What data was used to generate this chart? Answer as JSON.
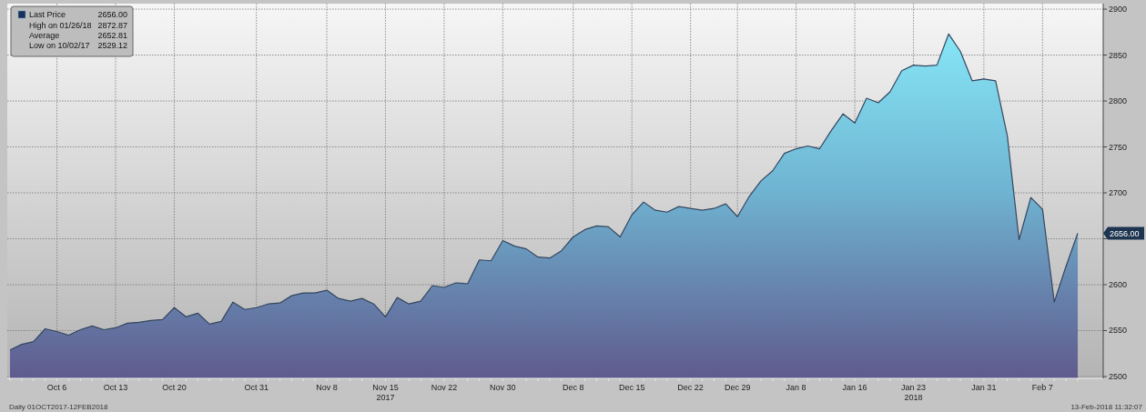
{
  "chart_data": {
    "type": "area",
    "subtitle": "Daily 01OCT2017-12FEB2018",
    "categories": [
      null,
      null,
      null,
      null,
      "Oct 6",
      null,
      null,
      null,
      null,
      "Oct 13",
      null,
      null,
      null,
      null,
      "Oct 20",
      null,
      null,
      null,
      null,
      null,
      null,
      "Oct 31",
      null,
      null,
      null,
      null,
      null,
      "Nov 8",
      null,
      null,
      null,
      null,
      "Nov 15",
      null,
      null,
      null,
      null,
      "Nov 22",
      null,
      null,
      null,
      null,
      "Nov 30",
      null,
      null,
      null,
      null,
      null,
      "Dec 8",
      null,
      null,
      null,
      null,
      "Dec 15",
      null,
      null,
      null,
      null,
      "Dec 22",
      null,
      null,
      null,
      "Dec 29",
      null,
      null,
      null,
      null,
      "Jan 8",
      null,
      null,
      null,
      null,
      "Jan 16",
      null,
      null,
      null,
      null,
      "Jan 23",
      null,
      null,
      null,
      null,
      null,
      "Jan 31",
      null,
      null,
      null,
      null,
      "Feb 7",
      null,
      null,
      null
    ],
    "series": [
      {
        "name": "Last Price",
        "color": "#6fb4d2",
        "values": [
          2529,
          2535,
          2538,
          2552,
          2549,
          2545,
          2551,
          2555,
          2551,
          2553,
          2558,
          2559,
          2561,
          2562,
          2575,
          2565,
          2569,
          2557,
          2560,
          2581,
          2573,
          2575,
          2579,
          2580,
          2588,
          2591,
          2591,
          2594,
          2585,
          2582,
          2585,
          2579,
          2565,
          2586,
          2579,
          2582,
          2599,
          2597,
          2602,
          2601,
          2627,
          2626,
          2648,
          2642,
          2639,
          2630,
          2629,
          2637,
          2652,
          2660,
          2664,
          2663,
          2652,
          2676,
          2690,
          2681,
          2679,
          2685,
          2683,
          2681,
          2683,
          2688,
          2674,
          2696,
          2713,
          2724,
          2743,
          2748,
          2751,
          2748,
          2768,
          2786,
          2776,
          2803,
          2798,
          2810,
          2833,
          2839,
          2838,
          2839,
          2873,
          2854,
          2822,
          2824,
          2822,
          2762,
          2649,
          2695,
          2682,
          2581,
          2620,
          2656
        ]
      }
    ],
    "ylim": [
      2498,
      2906
    ],
    "yticks": [
      2500,
      2550,
      2600,
      {
        "value": 2650,
        "label": null
      },
      2700,
      2750,
      2800,
      2850,
      2900
    ],
    "grid": true,
    "legend": "top left",
    "annotations": [
      "2656.00",
      "High on 01/26/18",
      "2872.87",
      "Average",
      "2652.81",
      "Low on 10/02/17",
      "2529.12",
      "13-Feb-2018 11:32:07",
      "2017",
      "2018",
      "2656.00"
    ]
  }
}
